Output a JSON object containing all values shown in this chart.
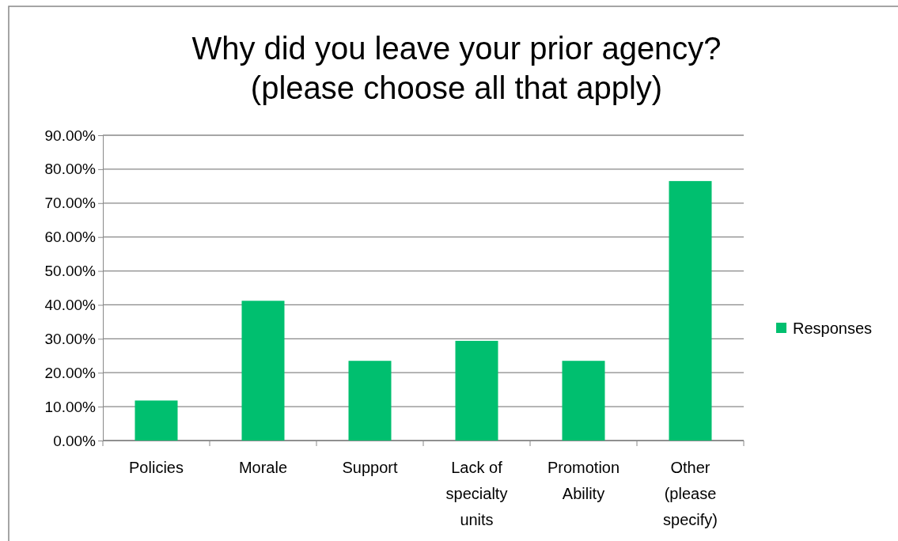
{
  "chart_data": {
    "type": "bar",
    "title": "Why did you leave your prior agency?\n(please choose all that apply)",
    "categories": [
      "Policies",
      "Morale",
      "Support",
      "Lack of specialty units",
      "Promotion Ability",
      "Other (please specify)"
    ],
    "series": [
      {
        "name": "Responses",
        "color": "#00bf6f",
        "values": [
          11.8,
          41.2,
          23.5,
          29.4,
          23.5,
          76.5
        ]
      }
    ],
    "ylim": [
      0,
      90
    ],
    "yticks": [
      {
        "value": 0,
        "label": "0.00%"
      },
      {
        "value": 10,
        "label": "10.00%"
      },
      {
        "value": 20,
        "label": "20.00%"
      },
      {
        "value": 30,
        "label": "30.00%"
      },
      {
        "value": 40,
        "label": "40.00%"
      },
      {
        "value": 50,
        "label": "50.00%"
      },
      {
        "value": 60,
        "label": "60.00%"
      },
      {
        "value": 70,
        "label": "70.00%"
      },
      {
        "value": 80,
        "label": "80.00%"
      },
      {
        "value": 90,
        "label": "90.00%"
      }
    ],
    "grid": "y",
    "legend": "right"
  }
}
